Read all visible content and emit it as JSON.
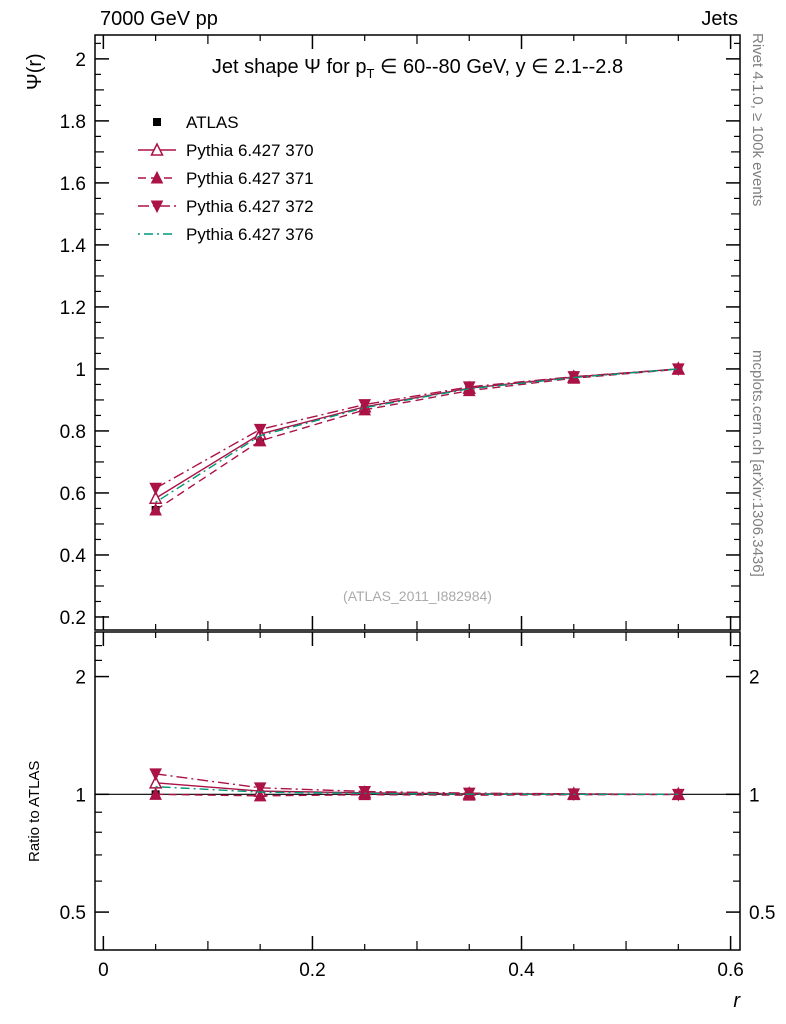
{
  "header": {
    "left": "7000 GeV pp",
    "right": "Jets"
  },
  "title": {
    "p1": "Jet shape Ψ for p",
    "sub": "T",
    "p2": " ∈ 60--80 GeV, y ∈ 2.1--2.8"
  },
  "watermark": "(ATLAS_2011_I882984)",
  "side_notes": {
    "top": "Rivet 4.1.0, ≥ 100k events",
    "bottom": "mcplots.cern.ch [arXiv:1306.3436]"
  },
  "axes": {
    "main_ylabel": "Ψ(r)",
    "ratio_ylabel": "Ratio to ATLAS",
    "xlabel": "r"
  },
  "colors": {
    "red": "#ab1245",
    "teal": "#00987a",
    "black": "#000000",
    "gray": "#808080"
  },
  "legend": {
    "items": [
      {
        "label": "ATLAS",
        "marker": "square",
        "color": "#000000",
        "linestyle": "none"
      },
      {
        "label": "Pythia 6.427 370",
        "marker": "triangle-up-open",
        "color": "#ab1245",
        "linestyle": "solid"
      },
      {
        "label": "Pythia 6.427 371",
        "marker": "triangle-up",
        "color": "#ab1245",
        "linestyle": "dashed"
      },
      {
        "label": "Pythia 6.427 372",
        "marker": "triangle-down",
        "color": "#ab1245",
        "linestyle": "dashdot"
      },
      {
        "label": "Pythia 6.427 376",
        "marker": "none",
        "color": "#00987a",
        "linestyle": "dashdotdot"
      }
    ]
  },
  "chart_data": [
    {
      "type": "line",
      "panel": "main",
      "title": "Jet shape Ψ for pT ∈ 60--80 GeV, y ∈ 2.1--2.8",
      "xlabel": "r",
      "ylabel": "Ψ(r)",
      "yscale": "linear",
      "xlim": [
        -0.008,
        0.609
      ],
      "ylim": [
        0.158,
        2.077
      ],
      "x": [
        0.05,
        0.15,
        0.25,
        0.35,
        0.45,
        0.55
      ],
      "xticks": {
        "major": [
          0,
          0.2,
          0.4,
          0.6
        ],
        "labels": null,
        "minor_step": 0.05
      },
      "yticks": {
        "major": [
          0.2,
          0.4,
          0.6,
          0.8,
          1,
          1.2,
          1.4,
          1.6,
          1.8,
          2
        ],
        "labels": [
          "0.2",
          "0.4",
          "0.6",
          "0.8",
          "1",
          "1.2",
          "1.4",
          "1.6",
          "1.8",
          "2"
        ],
        "minor_step": 0.05
      },
      "series": [
        {
          "name": "ATLAS",
          "values": [
            0.545,
            0.775,
            0.87,
            0.935,
            0.972,
            1.0
          ],
          "errors": [
            0.01,
            0.007,
            0.005,
            0.004,
            0.003,
            0.003
          ]
        },
        {
          "name": "Pythia 6.427 370",
          "values": [
            0.583,
            0.79,
            0.878,
            0.938,
            0.974,
            1.0
          ]
        },
        {
          "name": "Pythia 6.427 371",
          "values": [
            0.545,
            0.768,
            0.868,
            0.93,
            0.97,
            0.999
          ]
        },
        {
          "name": "Pythia 6.427 372",
          "values": [
            0.615,
            0.805,
            0.885,
            0.942,
            0.975,
            1.0
          ]
        },
        {
          "name": "Pythia 6.427 376",
          "values": [
            0.57,
            0.785,
            0.875,
            0.936,
            0.972,
            1.0
          ]
        }
      ]
    },
    {
      "type": "line",
      "panel": "ratio",
      "ylabel": "Ratio to ATLAS",
      "yscale": "log",
      "xlim": [
        -0.008,
        0.609
      ],
      "ylim": [
        0.4,
        2.6
      ],
      "refline": 1,
      "x": [
        0.05,
        0.15,
        0.25,
        0.35,
        0.45,
        0.55
      ],
      "xticks": {
        "major": [
          0,
          0.2,
          0.4,
          0.6
        ],
        "labels": [
          "0",
          "0.2",
          "0.4",
          "0.6"
        ],
        "minor_step": 0.05
      },
      "yticks": {
        "major": [
          0.5,
          1,
          2
        ],
        "labels": [
          "0.5",
          "1",
          "2"
        ],
        "minor": [
          0.6,
          0.7,
          0.8,
          0.9,
          2.2,
          2.4
        ],
        "mirror_labels": true
      },
      "series": [
        {
          "name": "ATLAS",
          "values": [
            1.0,
            1.0,
            1.0,
            1.0,
            1.0,
            1.0
          ],
          "errors": [
            0.016,
            0.009,
            0.006,
            0.004,
            0.003,
            0.003
          ]
        },
        {
          "name": "Pythia 6.427 370",
          "values": [
            1.07,
            1.019,
            1.009,
            1.003,
            1.002,
            1.0
          ]
        },
        {
          "name": "Pythia 6.427 371",
          "values": [
            1.0,
            0.991,
            0.998,
            0.995,
            0.998,
            0.999
          ]
        },
        {
          "name": "Pythia 6.427 372",
          "values": [
            1.128,
            1.039,
            1.017,
            1.007,
            1.003,
            1.0
          ]
        },
        {
          "name": "Pythia 6.427 376",
          "values": [
            1.046,
            1.013,
            1.006,
            1.001,
            1.0,
            1.0
          ]
        }
      ]
    }
  ]
}
